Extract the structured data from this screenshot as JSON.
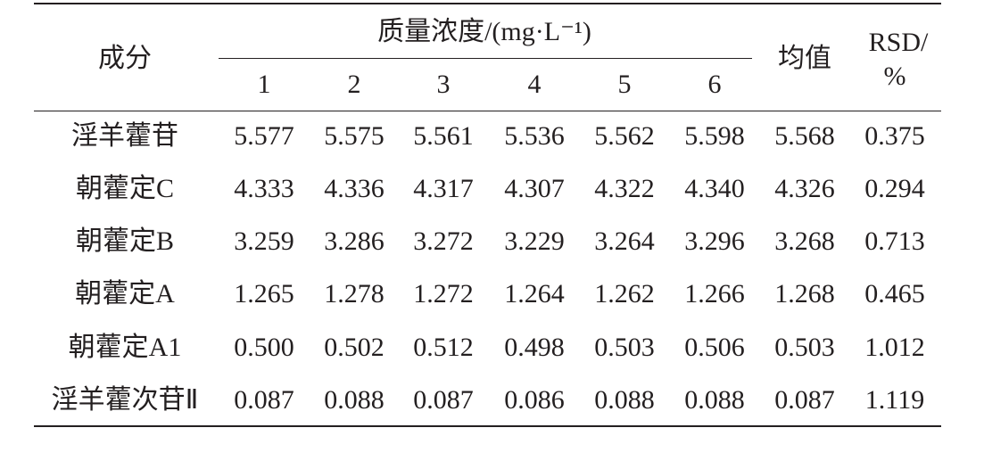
{
  "header": {
    "component": "成分",
    "group": "质量浓度/(mg·L⁻¹)",
    "columns": [
      "1",
      "2",
      "3",
      "4",
      "5",
      "6"
    ],
    "mean": "均值",
    "rsd": [
      "RSD/",
      "%"
    ]
  },
  "table": {
    "rows": [
      [
        "淫羊藿苷",
        "5.577",
        "5.575",
        "5.561",
        "5.536",
        "5.562",
        "5.598",
        "5.568",
        "0.375"
      ],
      [
        "朝藿定C",
        "4.333",
        "4.336",
        "4.317",
        "4.307",
        "4.322",
        "4.340",
        "4.326",
        "0.294"
      ],
      [
        "朝藿定B",
        "3.259",
        "3.286",
        "3.272",
        "3.229",
        "3.264",
        "3.296",
        "3.268",
        "0.713"
      ],
      [
        "朝藿定A",
        "1.265",
        "1.278",
        "1.272",
        "1.264",
        "1.262",
        "1.266",
        "1.268",
        "0.465"
      ],
      [
        "朝藿定A1",
        "0.500",
        "0.502",
        "0.512",
        "0.498",
        "0.503",
        "0.506",
        "0.503",
        "1.012"
      ],
      [
        "淫羊藿次苷Ⅱ",
        "0.087",
        "0.088",
        "0.087",
        "0.086",
        "0.088",
        "0.088",
        "0.087",
        "1.119"
      ]
    ]
  }
}
